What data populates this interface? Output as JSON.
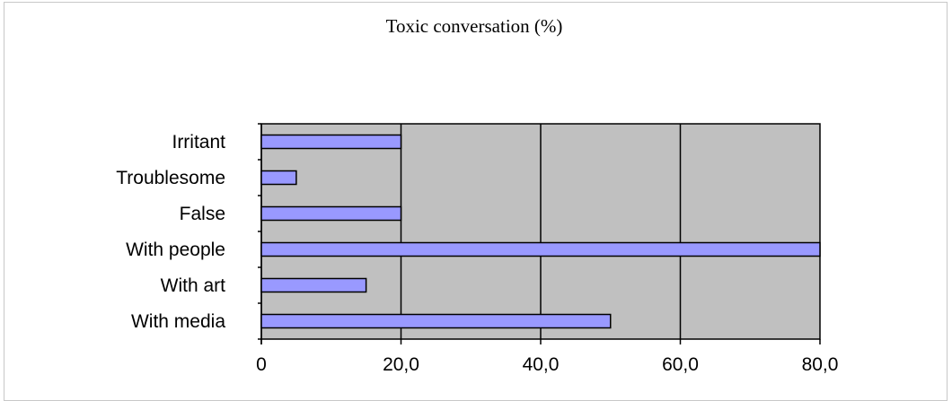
{
  "chart_data": {
    "type": "bar",
    "orientation": "horizontal",
    "title": "Toxic conversation (%)",
    "categories": [
      "Irritant",
      "Troublesome",
      "False",
      "With people",
      "With art",
      "With media"
    ],
    "values": [
      20,
      5,
      20,
      80,
      15,
      50
    ],
    "xlim": [
      0,
      80
    ],
    "xticks": [
      0,
      20,
      40,
      60,
      80
    ],
    "xtick_labels": [
      "0",
      "20,0",
      "40,0",
      "60,0",
      "80,0"
    ],
    "grid": "vertical",
    "colors": {
      "bar_fill": "#9999ff",
      "bar_stroke": "#000000",
      "plot_background": "#c0c0c0",
      "gridline": "#000000"
    }
  }
}
